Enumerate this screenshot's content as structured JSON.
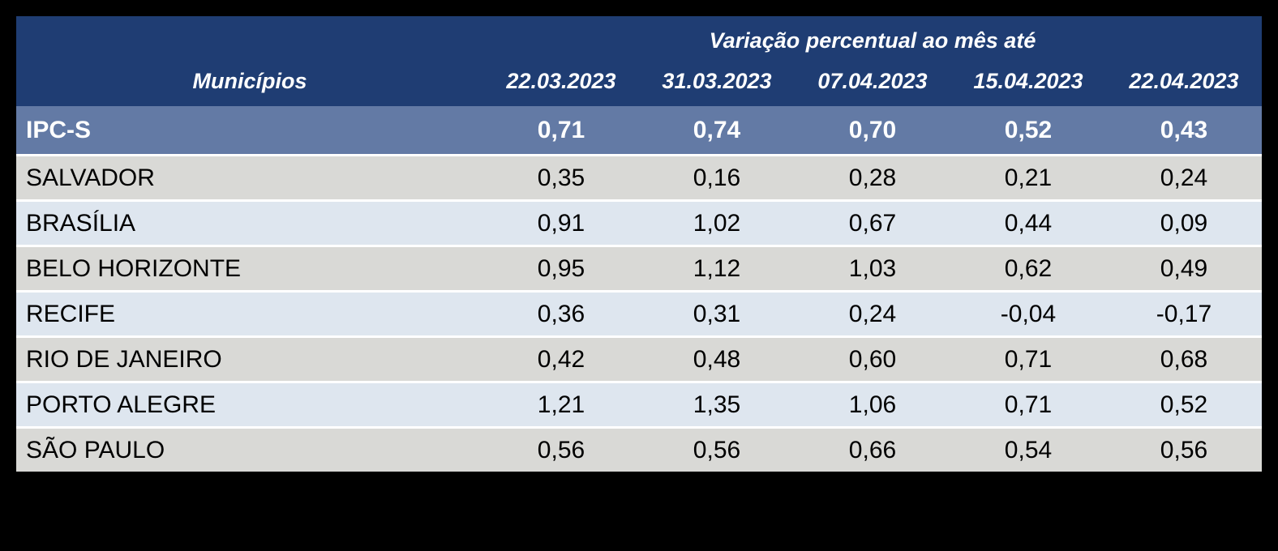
{
  "table": {
    "header": {
      "group_title": "Variação percentual ao mês até",
      "municipios_label": "Municípios",
      "date_columns": [
        "22.03.2023",
        "31.03.2023",
        "07.04.2023",
        "15.04.2023",
        "22.04.2023"
      ]
    },
    "ipcs_row": {
      "label": "IPC-S",
      "values": [
        "0,71",
        "0,74",
        "0,70",
        "0,52",
        "0,43"
      ]
    },
    "rows": [
      {
        "label": "SALVADOR",
        "values": [
          "0,35",
          "0,16",
          "0,28",
          "0,21",
          "0,24"
        ]
      },
      {
        "label": "BRASÍLIA",
        "values": [
          "0,91",
          "1,02",
          "0,67",
          "0,44",
          "0,09"
        ]
      },
      {
        "label": "BELO HORIZONTE",
        "values": [
          "0,95",
          "1,12",
          "1,03",
          "0,62",
          "0,49"
        ]
      },
      {
        "label": "RECIFE",
        "values": [
          "0,36",
          "0,31",
          "0,24",
          "-0,04",
          "-0,17"
        ]
      },
      {
        "label": "RIO DE JANEIRO",
        "values": [
          "0,42",
          "0,48",
          "0,60",
          "0,71",
          "0,68"
        ]
      },
      {
        "label": "PORTO ALEGRE",
        "values": [
          "1,21",
          "1,35",
          "1,06",
          "0,71",
          "0,52"
        ]
      },
      {
        "label": "SÃO PAULO",
        "values": [
          "0,56",
          "0,56",
          "0,66",
          "0,54",
          "0,56"
        ]
      }
    ]
  },
  "colors": {
    "bg": "#000000",
    "header-blue": "#1F3D73",
    "ipcs-blue": "#637AA5",
    "row-gray": "#D9D9D6",
    "row-blue": "#DEE6EF",
    "sep": "#FFFFFF",
    "header-text": "#FFFFFF",
    "body-text": "#000000"
  },
  "chart_data": {
    "type": "table",
    "title": "Variação percentual ao mês até",
    "row_header_label": "Municípios",
    "columns": [
      "22.03.2023",
      "31.03.2023",
      "07.04.2023",
      "15.04.2023",
      "22.04.2023"
    ],
    "rows": [
      {
        "name": "IPC-S",
        "highlighted": true,
        "values": [
          0.71,
          0.74,
          0.7,
          0.52,
          0.43
        ]
      },
      {
        "name": "SALVADOR",
        "highlighted": false,
        "values": [
          0.35,
          0.16,
          0.28,
          0.21,
          0.24
        ]
      },
      {
        "name": "BRASÍLIA",
        "highlighted": false,
        "values": [
          0.91,
          1.02,
          0.67,
          0.44,
          0.09
        ]
      },
      {
        "name": "BELO HORIZONTE",
        "highlighted": false,
        "values": [
          0.95,
          1.12,
          1.03,
          0.62,
          0.49
        ]
      },
      {
        "name": "RECIFE",
        "highlighted": false,
        "values": [
          0.36,
          0.31,
          0.24,
          -0.04,
          -0.17
        ]
      },
      {
        "name": "RIO DE JANEIRO",
        "highlighted": false,
        "values": [
          0.42,
          0.48,
          0.6,
          0.71,
          0.68
        ]
      },
      {
        "name": "PORTO ALEGRE",
        "highlighted": false,
        "values": [
          1.21,
          1.35,
          1.06,
          0.71,
          0.52
        ]
      },
      {
        "name": "SÃO PAULO",
        "highlighted": false,
        "values": [
          0.56,
          0.56,
          0.66,
          0.54,
          0.56
        ]
      }
    ],
    "value_unit": "percent",
    "decimal_separator": ","
  }
}
